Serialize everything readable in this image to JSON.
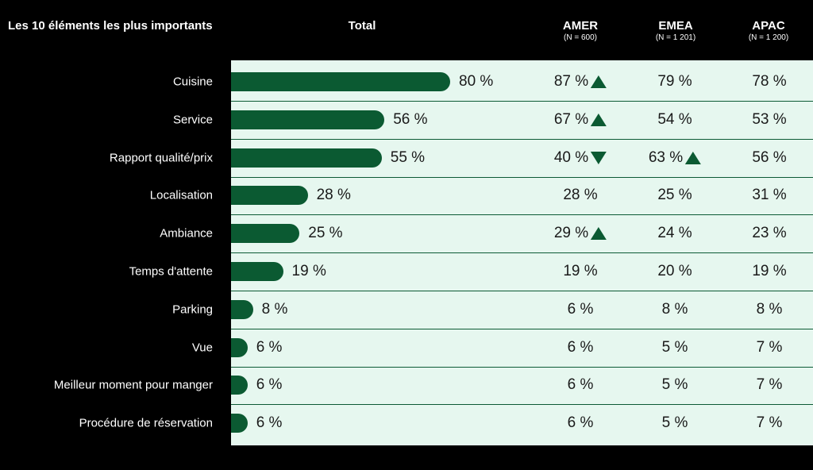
{
  "headers": {
    "left": "Les 10 éléments les plus importants",
    "total": "Total",
    "amer": "AMER",
    "amer_n": "(N = 600)",
    "emea": "EMEA",
    "emea_n": "(N = 1 201)",
    "apac": "APAC",
    "apac_n": "(N = 1 200)"
  },
  "colors": {
    "bar": "#0b5a32",
    "panel": "#e6f7ef",
    "background": "#000000"
  },
  "chart_data": {
    "type": "bar",
    "orientation": "horizontal",
    "categories": [
      "Cuisine",
      "Service",
      "Rapport qualité/prix",
      "Localisation",
      "Ambiance",
      "Temps d'attente",
      "Parking",
      "Vue",
      "Meilleur moment pour manger",
      "Procédure de réservation"
    ],
    "series": [
      {
        "name": "Total",
        "values": [
          80,
          56,
          55,
          28,
          25,
          19,
          8,
          6,
          6,
          6
        ]
      },
      {
        "name": "AMER",
        "values": [
          87,
          67,
          40,
          28,
          29,
          19,
          6,
          6,
          6,
          6
        ]
      },
      {
        "name": "EMEA",
        "values": [
          79,
          54,
          63,
          25,
          24,
          20,
          8,
          5,
          5,
          5
        ]
      },
      {
        "name": "APAC",
        "values": [
          78,
          53,
          56,
          31,
          23,
          19,
          8,
          7,
          7,
          7
        ]
      }
    ],
    "labels": {
      "total": [
        "80 %",
        "56 %",
        "55 %",
        "28 %",
        "25 %",
        "19 %",
        "8 %",
        "6 %",
        "6 %",
        "6 %"
      ],
      "amer": [
        "87 %",
        "67 %",
        "40 %",
        "28 %",
        "29 %",
        "19 %",
        "6 %",
        "6 %",
        "6 %",
        "6 %"
      ],
      "emea": [
        "79 %",
        "54 %",
        "63 %",
        "25 %",
        "24 %",
        "20 %",
        "8 %",
        "5 %",
        "5 %",
        "5 %"
      ],
      "apac": [
        "78 %",
        "53 %",
        "56 %",
        "31 %",
        "23 %",
        "19 %",
        "8 %",
        "7 %",
        "7 %",
        "7 %"
      ]
    },
    "markers": {
      "amer": [
        "up",
        "up",
        "down",
        "",
        "up",
        "",
        "",
        "",
        "",
        ""
      ],
      "emea": [
        "",
        "",
        "up",
        "",
        "",
        "",
        "",
        "",
        "",
        ""
      ],
      "apac": [
        "",
        "",
        "",
        "",
        "",
        "",
        "",
        "",
        "",
        ""
      ]
    }
  }
}
